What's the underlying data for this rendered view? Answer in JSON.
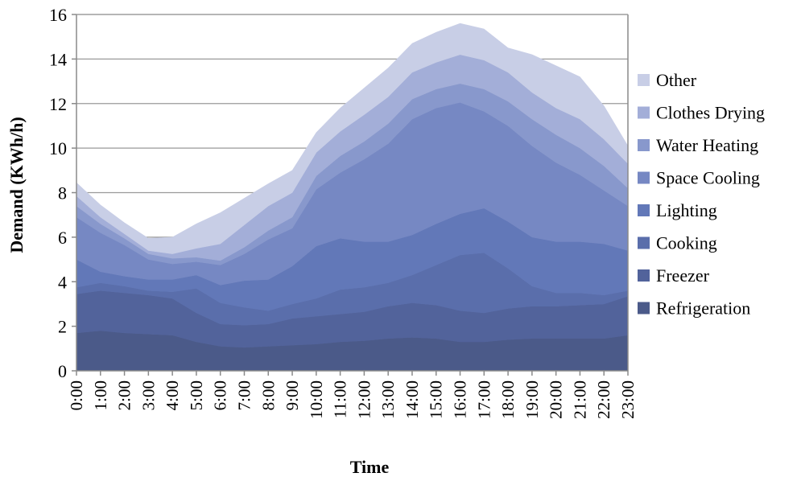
{
  "chart_data": {
    "type": "area",
    "stacked": true,
    "xlabel": "Time",
    "ylabel": "Demand (KWh/h)",
    "ylim": [
      0,
      16
    ],
    "yticks": [
      0,
      2,
      4,
      6,
      8,
      10,
      12,
      14,
      16
    ],
    "grid": "horizontal",
    "legend_position": "right",
    "categories": [
      "0:00",
      "1:00",
      "2:00",
      "3:00",
      "4:00",
      "5:00",
      "6:00",
      "7:00",
      "8:00",
      "9:00",
      "10:00",
      "11:00",
      "12:00",
      "13:00",
      "14:00",
      "15:00",
      "16:00",
      "17:00",
      "18:00",
      "19:00",
      "20:00",
      "21:00",
      "22:00",
      "23:00"
    ],
    "series": [
      {
        "name": "Refrigeration",
        "color": "#4b5a89",
        "values": [
          1.7,
          1.8,
          1.7,
          1.65,
          1.6,
          1.3,
          1.1,
          1.05,
          1.1,
          1.15,
          1.2,
          1.3,
          1.35,
          1.45,
          1.5,
          1.45,
          1.3,
          1.3,
          1.4,
          1.45,
          1.45,
          1.45,
          1.45,
          1.6
        ]
      },
      {
        "name": "Freezer",
        "color": "#52639b",
        "values": [
          1.75,
          1.8,
          1.8,
          1.75,
          1.65,
          1.3,
          1.0,
          1.0,
          1.0,
          1.2,
          1.25,
          1.25,
          1.3,
          1.45,
          1.55,
          1.5,
          1.4,
          1.3,
          1.4,
          1.45,
          1.45,
          1.5,
          1.55,
          1.75
        ]
      },
      {
        "name": "Cooking",
        "color": "#5a6eab",
        "values": [
          0.3,
          0.35,
          0.3,
          0.2,
          0.3,
          1.1,
          0.95,
          0.8,
          0.6,
          0.65,
          0.8,
          1.1,
          1.1,
          1.05,
          1.25,
          1.8,
          2.5,
          2.7,
          1.8,
          0.9,
          0.6,
          0.55,
          0.4,
          0.25
        ]
      },
      {
        "name": "Lighting",
        "color": "#6278b8",
        "values": [
          1.25,
          0.5,
          0.45,
          0.5,
          0.55,
          0.6,
          0.8,
          1.2,
          1.4,
          1.7,
          2.35,
          2.3,
          2.05,
          1.85,
          1.8,
          1.85,
          1.85,
          2.0,
          2.1,
          2.2,
          2.3,
          2.3,
          2.3,
          1.8
        ]
      },
      {
        "name": "Space Cooling",
        "color": "#7688c3",
        "values": [
          1.9,
          1.75,
          1.4,
          0.9,
          0.7,
          0.6,
          0.9,
          1.2,
          1.8,
          1.7,
          2.55,
          2.95,
          3.7,
          4.4,
          5.2,
          5.2,
          5.0,
          4.35,
          4.3,
          4.1,
          3.55,
          3.0,
          2.4,
          2.0
        ]
      },
      {
        "name": "Water Heating",
        "color": "#8898cc",
        "values": [
          0.5,
          0.4,
          0.3,
          0.25,
          0.25,
          0.2,
          0.2,
          0.3,
          0.4,
          0.5,
          0.6,
          0.75,
          0.8,
          0.9,
          0.9,
          0.85,
          0.85,
          1.0,
          1.1,
          1.2,
          1.25,
          1.2,
          1.1,
          0.8
        ]
      },
      {
        "name": "Clothes Drying",
        "color": "#a3aed8",
        "values": [
          0.45,
          0.3,
          0.2,
          0.15,
          0.2,
          0.4,
          0.75,
          1.0,
          1.1,
          1.1,
          1.05,
          1.1,
          1.2,
          1.2,
          1.2,
          1.2,
          1.3,
          1.3,
          1.3,
          1.2,
          1.2,
          1.3,
          1.2,
          1.1
        ]
      },
      {
        "name": "Other",
        "color": "#c8cee6",
        "values": [
          0.6,
          0.55,
          0.5,
          0.55,
          0.75,
          1.1,
          1.4,
          1.2,
          1.0,
          1.0,
          0.9,
          1.05,
          1.2,
          1.3,
          1.3,
          1.35,
          1.4,
          1.4,
          1.1,
          1.7,
          1.9,
          1.9,
          1.5,
          0.8
        ]
      }
    ]
  }
}
